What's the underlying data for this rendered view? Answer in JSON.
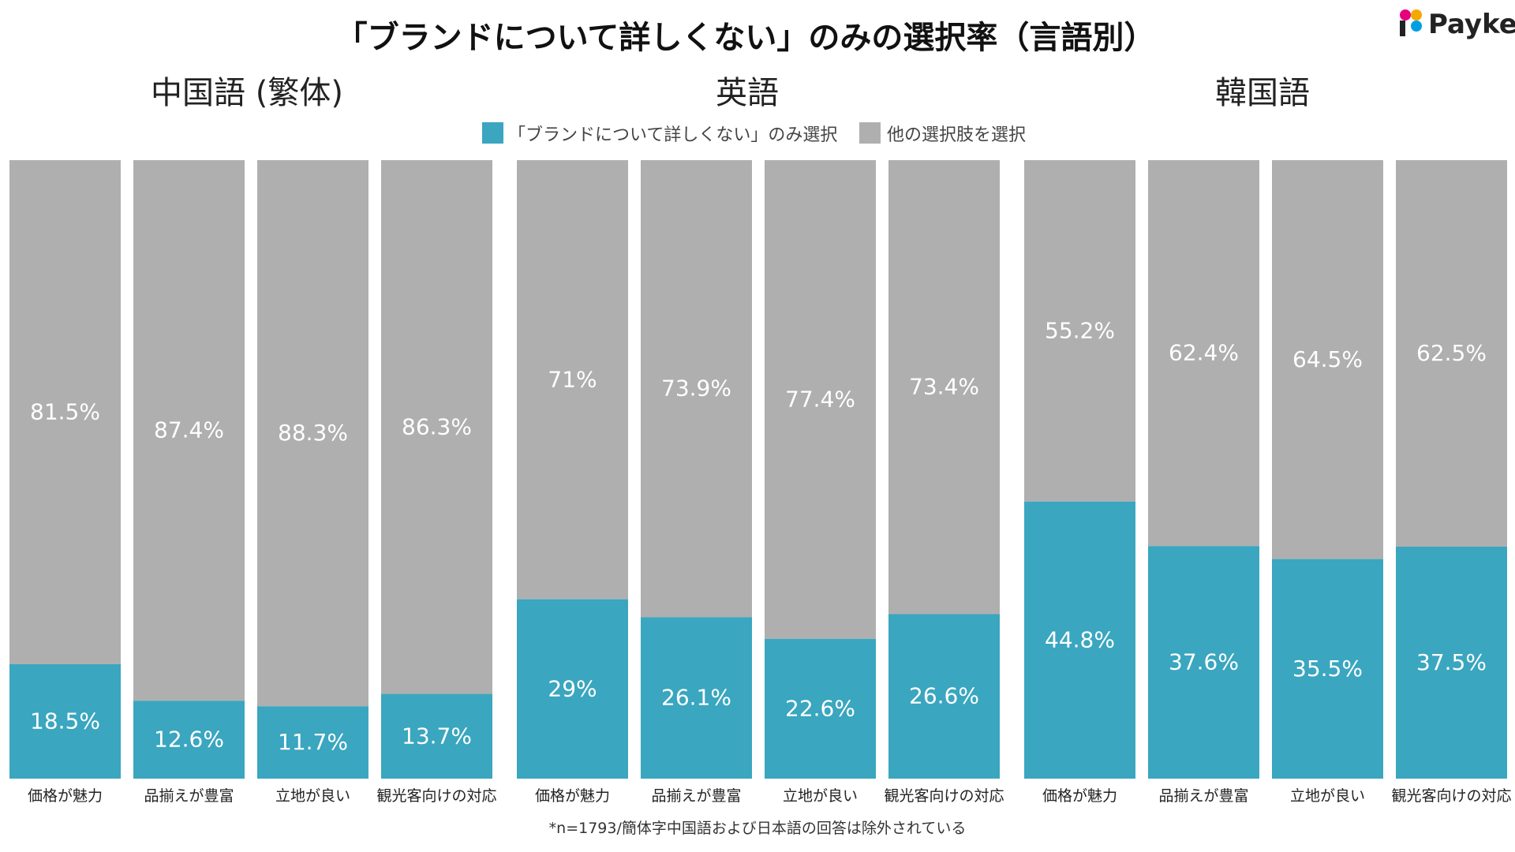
{
  "title": "「ブランドについて詳しくない」のみの選択率（言語別）",
  "logo": {
    "text": "Payke",
    "colors": [
      "#e6007e",
      "#f5a800",
      "#009fe3",
      "#222222"
    ]
  },
  "legend": [
    {
      "label": "「ブランドについて詳しくない」のみ選択",
      "color": "#3aa6bf"
    },
    {
      "label": "他の選択肢を選択",
      "color": "#afafaf"
    }
  ],
  "footnote": "*n=1793/簡体字中国語および日本語の回答は除外されている",
  "chart_data": [
    {
      "type": "bar",
      "stacked": true,
      "title": "中国語 (繁体)",
      "categories": [
        "価格が魅力",
        "品揃えが豊富",
        "立地が良い",
        "観光客向けの対応"
      ],
      "series": [
        {
          "name": "「ブランドについて詳しくない」のみ選択",
          "values": [
            18.5,
            12.6,
            11.7,
            13.7
          ],
          "labels": [
            "18.5%",
            "12.6%",
            "11.7%",
            "13.7%"
          ]
        },
        {
          "name": "他の選択肢を選択",
          "values": [
            81.5,
            87.4,
            88.3,
            86.3
          ],
          "labels": [
            "81.5%",
            "87.4%",
            "88.3%",
            "86.3%"
          ]
        }
      ],
      "ylim": [
        0,
        100
      ]
    },
    {
      "type": "bar",
      "stacked": true,
      "title": "英語",
      "categories": [
        "価格が魅力",
        "品揃えが豊富",
        "立地が良い",
        "観光客向けの対応"
      ],
      "series": [
        {
          "name": "「ブランドについて詳しくない」のみ選択",
          "values": [
            29,
            26.1,
            22.6,
            26.6
          ],
          "labels": [
            "29%",
            "26.1%",
            "22.6%",
            "26.6%"
          ]
        },
        {
          "name": "他の選択肢を選択",
          "values": [
            71,
            73.9,
            77.4,
            73.4
          ],
          "labels": [
            "71%",
            "73.9%",
            "77.4%",
            "73.4%"
          ]
        }
      ],
      "ylim": [
        0,
        100
      ]
    },
    {
      "type": "bar",
      "stacked": true,
      "title": "韓国語",
      "categories": [
        "価格が魅力",
        "品揃えが豊富",
        "立地が良い",
        "観光客向けの対応"
      ],
      "series": [
        {
          "name": "「ブランドについて詳しくない」のみ選択",
          "values": [
            44.8,
            37.6,
            35.5,
            37.5
          ],
          "labels": [
            "44.8%",
            "37.6%",
            "35.5%",
            "37.5%"
          ]
        },
        {
          "name": "他の選択肢を選択",
          "values": [
            55.2,
            62.4,
            64.5,
            62.5
          ],
          "labels": [
            "55.2%",
            "62.4%",
            "64.5%",
            "62.5%"
          ]
        }
      ],
      "ylim": [
        0,
        100
      ]
    }
  ]
}
